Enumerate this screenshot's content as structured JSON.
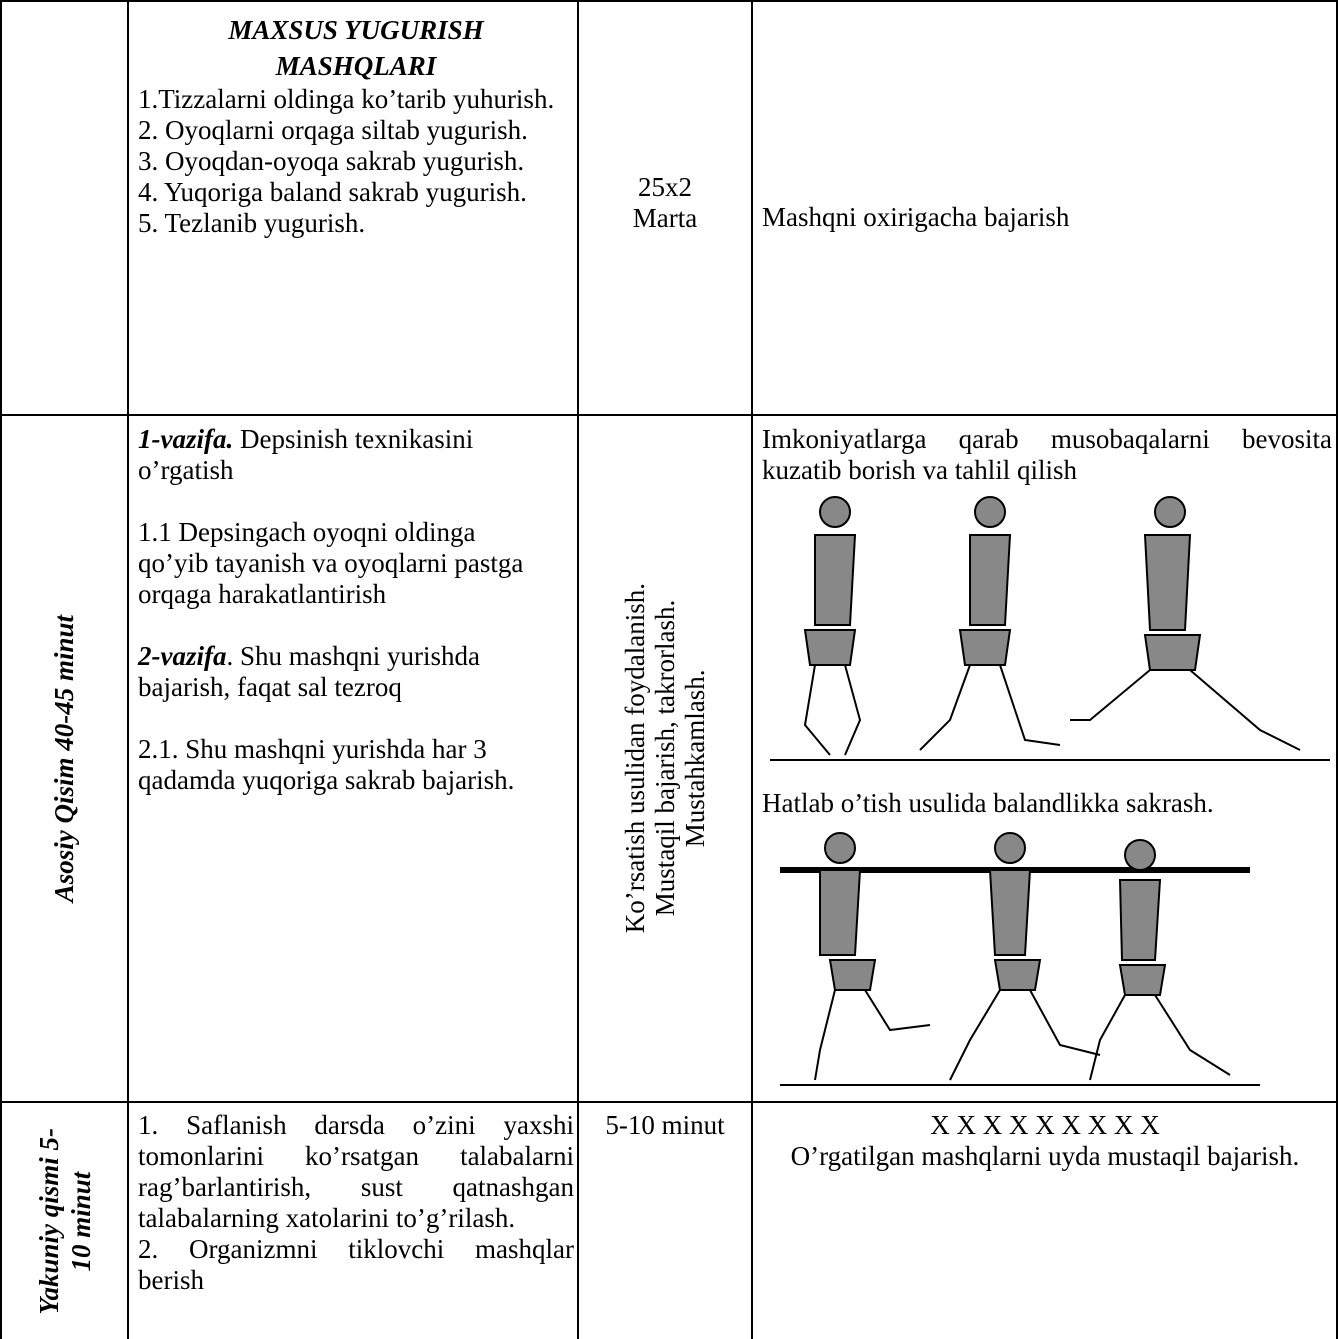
{
  "table": {
    "rows": [
      {
        "content": {
          "title": "MAXSUS YUGURISH MASHQLARI",
          "items": [
            "1.Tizzalarni oldinga ko’tarib yuhurish.",
            "2. Oyoqlarni orqaga siltab yugurish.",
            "3. Oyoqdan-oyoqa sakrab yugurish.",
            "4. Yuqoriga baland sakrab yugurish.",
            "5. Tezlanib yugurish."
          ]
        },
        "dosage": [
          "25x2",
          "Marta"
        ],
        "notes": "Mashqni oxirigacha bajarish"
      },
      {
        "section": "Asosiy Qisim 40-45 minut",
        "content": {
          "paragraphs": [
            {
              "lead": "1-vazifa.",
              "text": "Depsinish texnikasini o’rgatish"
            },
            {
              "text": "1.1 Depsingach oyoqni oldinga qo’yib tayanish va oyoqlarni pastga orqaga harakatlantirish"
            },
            {
              "lead": "2-vazifa",
              "text": ". Shu mashqni yurishda bajarish, faqat sal tezroq"
            },
            {
              "text": "2.1. Shu mashqni yurishda har 3 qadamda yuqoriga sakrab bajarish."
            }
          ]
        },
        "method": [
          "Ko’rsatish usulidan foydalanish.",
          "Mustaqil bajarish, takrorlash.",
          "Mustahkamlash."
        ],
        "notes": {
          "captions": [
            "Imkoniyatlarga qarab musobaqalarni bevosita kuzatib borish va tahlil qilish",
            "Hatlab o’tish usulida balandlikka sakrash."
          ]
        }
      },
      {
        "section": [
          "Yakuniy qismi 5-",
          "10 minut"
        ],
        "content": {
          "items": [
            "1. Saflanish darsda o’zini yaxshi tomonlarini ko’rsatgan talabalarni rag’barlantirish, sust qatnashgan talabalarning xatolarini to’g’rilash.",
            "2. Organizmni tiklovchi mashqlar berish"
          ]
        },
        "dosage": "5-10 minut",
        "notes": [
          "X X X X X X X X X",
          "O’rgatilgan mashqlarni uyda mustaqil bajarish."
        ]
      }
    ]
  }
}
